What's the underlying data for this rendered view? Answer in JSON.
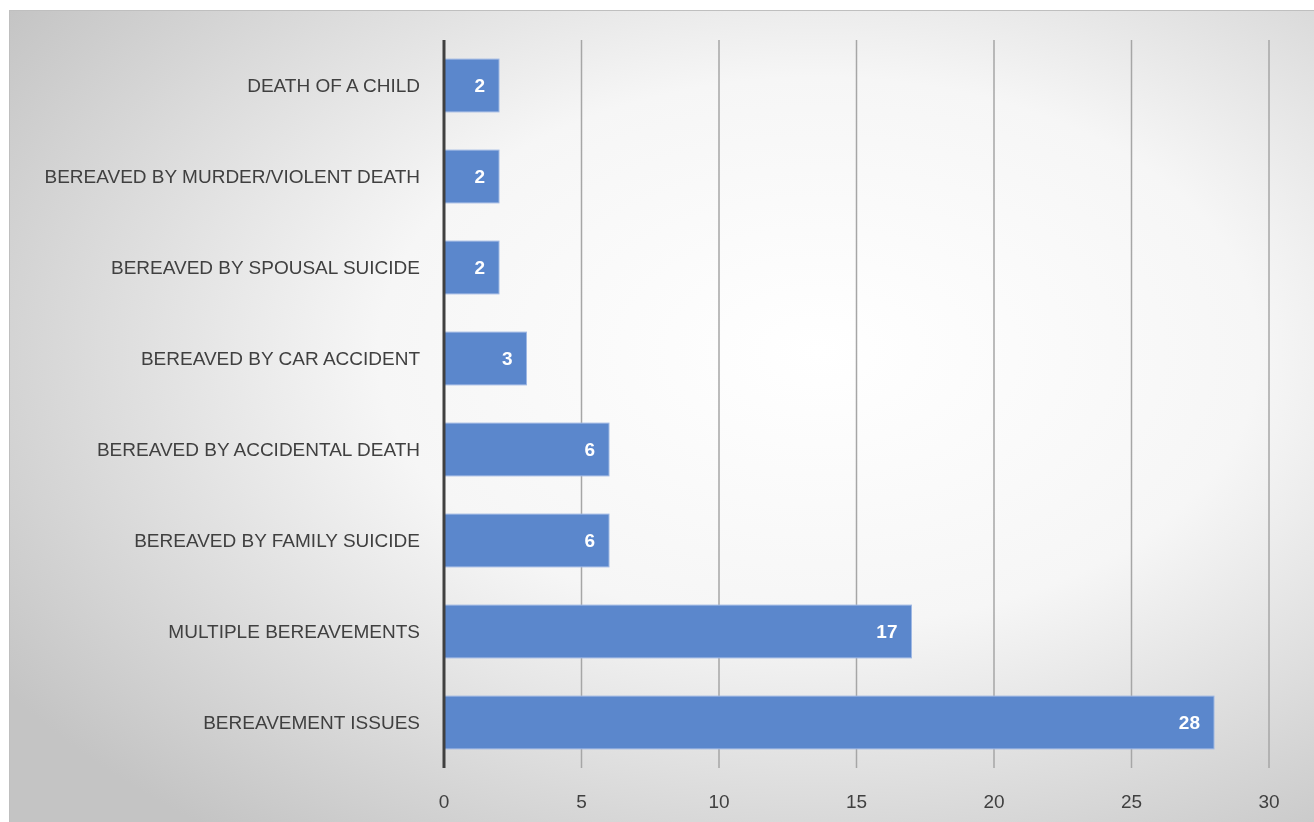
{
  "chart_data": {
    "type": "bar",
    "orientation": "horizontal",
    "categories": [
      "DEATH OF A CHILD",
      "BEREAVED BY MURDER/VIOLENT DEATH",
      "BEREAVED BY SPOUSAL SUICIDE",
      "BEREAVED BY CAR ACCIDENT",
      "BEREAVED BY ACCIDENTAL DEATH",
      "BEREAVED BY FAMILY SUICIDE",
      "MULTIPLE BEREAVEMENTS",
      "BEREAVEMENT ISSUES"
    ],
    "values": [
      2,
      2,
      2,
      3,
      6,
      6,
      17,
      28
    ],
    "color": "#5b87cc",
    "xlim": [
      0,
      30
    ],
    "xticks": [
      0,
      5,
      10,
      15,
      20,
      25,
      30
    ],
    "grid": "x",
    "data_labels": true
  }
}
